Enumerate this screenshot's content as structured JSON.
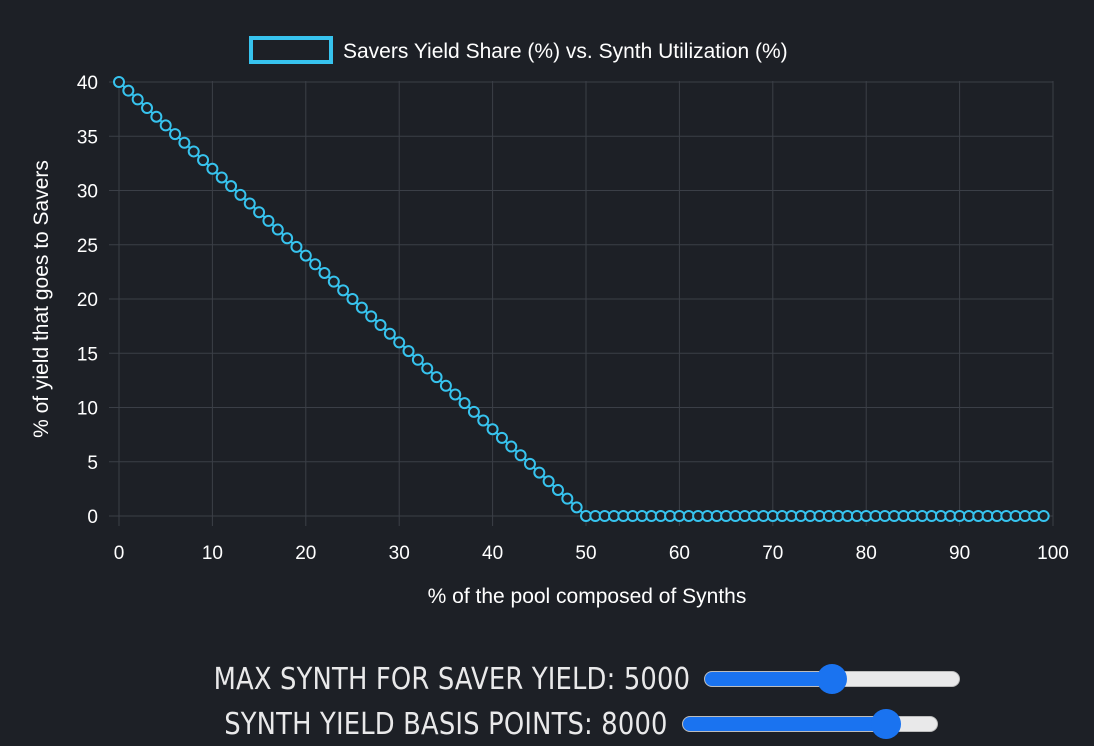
{
  "chart_data": {
    "type": "line",
    "legend": {
      "label": "Savers Yield Share (%) vs. Synth Utilization (%)",
      "color": "#37c3ee",
      "placement": "top-center"
    },
    "xlabel": "% of the pool composed of Synths",
    "ylabel": "% of yield that goes to Savers",
    "xlim": [
      0,
      100
    ],
    "ylim": [
      0,
      40
    ],
    "x_ticks": [
      0,
      10,
      20,
      30,
      40,
      50,
      60,
      70,
      80,
      90,
      100
    ],
    "y_ticks": [
      0,
      5,
      10,
      15,
      20,
      25,
      30,
      35,
      40
    ],
    "grid": true,
    "series": [
      {
        "name": "Savers Yield Share (%) vs. Synth Utilization (%)",
        "color": "#37c3ee",
        "marker": "hollow-circle",
        "x": [
          0,
          1,
          2,
          3,
          4,
          5,
          6,
          7,
          8,
          9,
          10,
          11,
          12,
          13,
          14,
          15,
          16,
          17,
          18,
          19,
          20,
          21,
          22,
          23,
          24,
          25,
          26,
          27,
          28,
          29,
          30,
          31,
          32,
          33,
          34,
          35,
          36,
          37,
          38,
          39,
          40,
          41,
          42,
          43,
          44,
          45,
          46,
          47,
          48,
          49,
          50,
          51,
          52,
          53,
          54,
          55,
          56,
          57,
          58,
          59,
          60,
          61,
          62,
          63,
          64,
          65,
          66,
          67,
          68,
          69,
          70,
          71,
          72,
          73,
          74,
          75,
          76,
          77,
          78,
          79,
          80,
          81,
          82,
          83,
          84,
          85,
          86,
          87,
          88,
          89,
          90,
          91,
          92,
          93,
          94,
          95,
          96,
          97,
          98,
          99
        ],
        "values": [
          40,
          39.2,
          38.4,
          37.6,
          36.8,
          36,
          35.2,
          34.4,
          33.6,
          32.8,
          32,
          31.2,
          30.4,
          29.6,
          28.8,
          28,
          27.2,
          26.4,
          25.6,
          24.8,
          24,
          23.2,
          22.4,
          21.6,
          20.8,
          20,
          19.2,
          18.4,
          17.6,
          16.8,
          16,
          15.2,
          14.4,
          13.6,
          12.8,
          12,
          11.2,
          10.4,
          9.6,
          8.8,
          8,
          7.2,
          6.4,
          5.6,
          4.8,
          4,
          3.2,
          2.4,
          1.6,
          0.8,
          0,
          0,
          0,
          0,
          0,
          0,
          0,
          0,
          0,
          0,
          0,
          0,
          0,
          0,
          0,
          0,
          0,
          0,
          0,
          0,
          0,
          0,
          0,
          0,
          0,
          0,
          0,
          0,
          0,
          0,
          0,
          0,
          0,
          0,
          0,
          0,
          0,
          0,
          0,
          0,
          0,
          0,
          0,
          0,
          0,
          0,
          0,
          0,
          0,
          0
        ]
      }
    ]
  },
  "controls": {
    "max_synth": {
      "label": "MAX SYNTH FOR SAVER YIELD: 5000",
      "value": 5000,
      "min": 0,
      "max": 10000,
      "color": "#1a73f0"
    },
    "synth_yield": {
      "label": "SYNTH YIELD BASIS POINTS: 8000",
      "value": 8000,
      "min": 0,
      "max": 10000,
      "color": "#1a73f0"
    }
  }
}
